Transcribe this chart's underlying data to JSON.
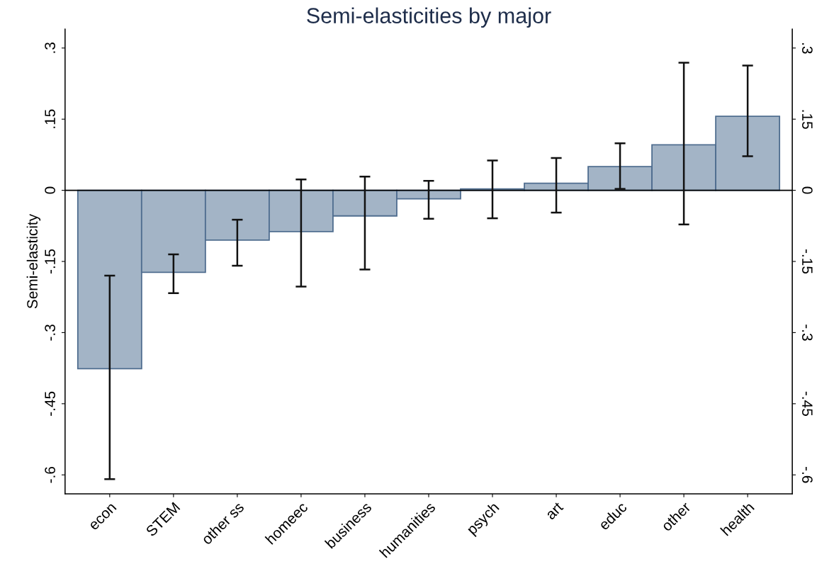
{
  "chart_data": {
    "type": "bar",
    "title": "Semi-elasticities by major",
    "ylabel": "Semi-elasticity",
    "categories": [
      "econ",
      "STEM",
      "other ss",
      "homeec",
      "business",
      "humanities",
      "psych",
      "art",
      "educ",
      "other",
      "health"
    ],
    "values": [
      -0.376,
      -0.173,
      -0.105,
      -0.087,
      -0.054,
      -0.018,
      0.003,
      0.015,
      0.05,
      0.096,
      0.156
    ],
    "errors": [
      [
        -0.609,
        -0.18
      ],
      [
        -0.217,
        -0.135
      ],
      [
        -0.159,
        -0.062
      ],
      [
        -0.203,
        0.023
      ],
      [
        -0.167,
        0.029
      ],
      [
        -0.06,
        0.02
      ],
      [
        -0.059,
        0.063
      ],
      [
        -0.047,
        0.068
      ],
      [
        0.003,
        0.099
      ],
      [
        -0.072,
        0.269
      ],
      [
        0.072,
        0.263
      ]
    ],
    "color": "#a3b4c6",
    "ylim": [
      -0.64,
      0.34
    ],
    "yticks": [
      {
        "value": 0.3,
        "label": ".3"
      },
      {
        "value": 0.15,
        "label": ".15"
      },
      {
        "value": 0,
        "label": "0"
      },
      {
        "value": -0.15,
        "label": "-.15"
      },
      {
        "value": -0.3,
        "label": "-.3"
      },
      {
        "value": -0.45,
        "label": "-.45"
      },
      {
        "value": -0.6,
        "label": "-.6"
      }
    ],
    "y2lim": [
      -0.64,
      0.34
    ],
    "y2ticks": [
      {
        "value": 0.3,
        "label": ".3"
      },
      {
        "value": 0.15,
        "label": ".15"
      },
      {
        "value": 0,
        "label": "0"
      },
      {
        "value": -0.15,
        "label": "-.15"
      },
      {
        "value": -0.3,
        "label": "-.3"
      },
      {
        "value": -0.45,
        "label": "-.45"
      },
      {
        "value": -0.6,
        "label": "-.6"
      }
    ],
    "ref_lines": [
      {
        "axis": "y",
        "value": 0,
        "color": "#000000"
      }
    ],
    "grid": false,
    "legend": false
  }
}
